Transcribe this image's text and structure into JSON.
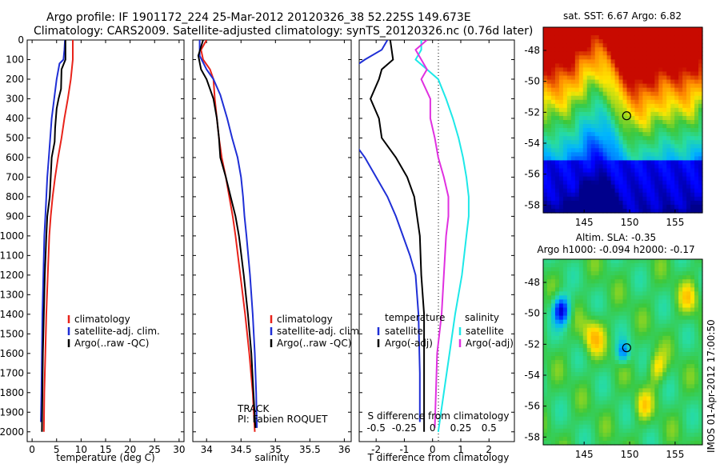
{
  "header": {
    "line1": "Argo profile: IF 1901172_224 25-Mar-2012 20120326_38 52.225S 149.673E",
    "line2": "Climatology: CARS2009. Satellite-adjusted climatology: synTS_20120326.nc (0.76d later)"
  },
  "side_label": "IMOS 01-Apr-2012 17:00:50",
  "colors": {
    "climatology": "#e8231a",
    "satellite": "#1f2fd6",
    "argo": "#000000",
    "cyan": "#1de8e8",
    "magenta": "#e030e0"
  },
  "chart_data": [
    {
      "id": "temperature",
      "type": "line",
      "xlabel": "temperature (deg C)",
      "xlim": [
        -1,
        31
      ],
      "xticks": [
        0,
        5,
        10,
        15,
        20,
        25,
        30
      ],
      "ylim": [
        2050,
        0
      ],
      "yticks": [
        0,
        100,
        200,
        300,
        400,
        500,
        600,
        700,
        800,
        900,
        1000,
        1100,
        1200,
        1300,
        1400,
        1500,
        1600,
        1700,
        1800,
        1900,
        2000
      ],
      "legend": [
        "climatology",
        "satellite-adj. clim.",
        "Argo(..raw -QC)"
      ],
      "series": [
        {
          "name": "climatology",
          "color": "climatology",
          "points": [
            [
              8.3,
              0
            ],
            [
              8.3,
              100
            ],
            [
              7.9,
              200
            ],
            [
              7.3,
              300
            ],
            [
              6.6,
              400
            ],
            [
              6.0,
              500
            ],
            [
              5.3,
              600
            ],
            [
              4.7,
              700
            ],
            [
              4.2,
              800
            ],
            [
              3.8,
              900
            ],
            [
              3.5,
              1000
            ],
            [
              3.2,
              1200
            ],
            [
              2.9,
              1400
            ],
            [
              2.7,
              1600
            ],
            [
              2.5,
              1800
            ],
            [
              2.4,
              2000
            ]
          ]
        },
        {
          "name": "satellite-adj. clim.",
          "color": "satellite",
          "points": [
            [
              6.7,
              0
            ],
            [
              6.6,
              50
            ],
            [
              6.4,
              100
            ],
            [
              5.6,
              120
            ],
            [
              5.0,
              200
            ],
            [
              4.5,
              300
            ],
            [
              4.0,
              400
            ],
            [
              3.7,
              500
            ],
            [
              3.4,
              600
            ],
            [
              3.1,
              700
            ],
            [
              2.9,
              800
            ],
            [
              2.7,
              900
            ],
            [
              2.5,
              1000
            ],
            [
              2.3,
              1200
            ],
            [
              2.1,
              1400
            ],
            [
              2.0,
              1600
            ],
            [
              1.9,
              1800
            ],
            [
              1.8,
              1950
            ]
          ]
        },
        {
          "name": "Argo(..raw -QC)",
          "color": "argo",
          "points": [
            [
              6.8,
              0
            ],
            [
              6.8,
              100
            ],
            [
              6.0,
              150
            ],
            [
              5.9,
              250
            ],
            [
              5.4,
              300
            ],
            [
              5.0,
              350
            ],
            [
              4.7,
              450
            ],
            [
              4.6,
              520
            ],
            [
              4.0,
              600
            ],
            [
              3.8,
              700
            ],
            [
              3.6,
              800
            ],
            [
              3.1,
              900
            ],
            [
              2.9,
              1000
            ],
            [
              2.6,
              1200
            ],
            [
              2.4,
              1400
            ],
            [
              2.2,
              1600
            ],
            [
              2.1,
              1800
            ],
            [
              2.0,
              2000
            ]
          ]
        }
      ]
    },
    {
      "id": "salinity",
      "type": "line",
      "xlabel": "salinity",
      "xlim": [
        33.8,
        36.1
      ],
      "xticks": [
        34,
        34.5,
        35,
        35.5,
        36
      ],
      "ylim": [
        2050,
        0
      ],
      "legend": [
        "climatology",
        "satellite-adj. clim.",
        "Argo(..raw -QC)"
      ],
      "annotation": [
        "TRACK",
        "PI: Fabien ROQUET"
      ],
      "series": [
        {
          "name": "climatology",
          "color": "climatology",
          "points": [
            [
              34.0,
              0
            ],
            [
              33.92,
              50
            ],
            [
              33.95,
              100
            ],
            [
              34.05,
              150
            ],
            [
              34.1,
              200
            ],
            [
              34.12,
              300
            ],
            [
              34.15,
              400
            ],
            [
              34.18,
              500
            ],
            [
              34.22,
              600
            ],
            [
              34.28,
              700
            ],
            [
              34.33,
              800
            ],
            [
              34.38,
              900
            ],
            [
              34.42,
              1000
            ],
            [
              34.49,
              1200
            ],
            [
              34.56,
              1400
            ],
            [
              34.62,
              1600
            ],
            [
              34.67,
              1800
            ],
            [
              34.7,
              2000
            ]
          ]
        },
        {
          "name": "satellite-adj. clim.",
          "color": "satellite",
          "points": [
            [
              33.9,
              0
            ],
            [
              33.9,
              80
            ],
            [
              34.0,
              150
            ],
            [
              34.1,
              200
            ],
            [
              34.2,
              280
            ],
            [
              34.3,
              400
            ],
            [
              34.37,
              500
            ],
            [
              34.45,
              600
            ],
            [
              34.5,
              700
            ],
            [
              34.53,
              800
            ],
            [
              34.55,
              900
            ],
            [
              34.58,
              1000
            ],
            [
              34.63,
              1200
            ],
            [
              34.67,
              1400
            ],
            [
              34.7,
              1600
            ],
            [
              34.72,
              1800
            ],
            [
              34.73,
              1980
            ]
          ]
        },
        {
          "name": "Argo(..raw -QC)",
          "color": "argo",
          "points": [
            [
              33.95,
              0
            ],
            [
              33.88,
              80
            ],
            [
              33.92,
              150
            ],
            [
              34.0,
              200
            ],
            [
              34.05,
              250
            ],
            [
              34.1,
              300
            ],
            [
              34.15,
              400
            ],
            [
              34.18,
              500
            ],
            [
              34.2,
              600
            ],
            [
              34.28,
              700
            ],
            [
              34.35,
              800
            ],
            [
              34.42,
              900
            ],
            [
              34.47,
              1000
            ],
            [
              34.54,
              1200
            ],
            [
              34.6,
              1400
            ],
            [
              34.65,
              1600
            ],
            [
              34.68,
              1800
            ],
            [
              34.71,
              1980
            ]
          ]
        }
      ]
    },
    {
      "id": "difference",
      "type": "line",
      "xlabel": "T difference from climatology",
      "xlim": [
        -2.6,
        2.9
      ],
      "xticks": [
        -2,
        -1,
        0,
        1,
        2
      ],
      "xlabel_top": "S difference from climatology",
      "xticks_top": [
        -0.5,
        -0.25,
        0,
        0.25,
        0.5
      ],
      "ylim": [
        2050,
        0
      ],
      "legend_left_title": "temperature",
      "legend_right_title": "salinity",
      "legend_left": [
        "satellite",
        "Argo(-adj)"
      ],
      "legend_right": [
        "satellite",
        "Argo(-adj)"
      ],
      "series": [
        {
          "name": "T satellite",
          "color": "satellite",
          "points": [
            [
              -1.6,
              0
            ],
            [
              -1.8,
              50
            ],
            [
              -2.4,
              100
            ],
            [
              -2.9,
              150
            ],
            [
              -3.2,
              300
            ],
            [
              -2.9,
              500
            ],
            [
              -2.4,
              600
            ],
            [
              -2.0,
              700
            ],
            [
              -1.6,
              800
            ],
            [
              -1.3,
              900
            ],
            [
              -1.05,
              1000
            ],
            [
              -0.8,
              1100
            ],
            [
              -0.6,
              1200
            ],
            [
              -0.5,
              1400
            ],
            [
              -0.45,
              1700
            ],
            [
              -0.45,
              1950
            ]
          ]
        },
        {
          "name": "T Argo(-adj)",
          "color": "argo",
          "points": [
            [
              -1.5,
              0
            ],
            [
              -1.4,
              100
            ],
            [
              -1.8,
              150
            ],
            [
              -1.9,
              200
            ],
            [
              -2.2,
              300
            ],
            [
              -1.9,
              400
            ],
            [
              -1.8,
              500
            ],
            [
              -1.3,
              600
            ],
            [
              -0.9,
              700
            ],
            [
              -0.65,
              800
            ],
            [
              -0.55,
              900
            ],
            [
              -0.45,
              1000
            ],
            [
              -0.4,
              1200
            ],
            [
              -0.3,
              1400
            ],
            [
              -0.3,
              1700
            ],
            [
              -0.3,
              2000
            ]
          ]
        },
        {
          "name": "S satellite",
          "color": "cyan",
          "points": [
            [
              -0.1,
              0
            ],
            [
              -0.1,
              50
            ],
            [
              -0.15,
              100
            ],
            [
              -0.05,
              150
            ],
            [
              0.05,
              200
            ],
            [
              0.12,
              300
            ],
            [
              0.18,
              400
            ],
            [
              0.23,
              500
            ],
            [
              0.27,
              600
            ],
            [
              0.3,
              700
            ],
            [
              0.32,
              800
            ],
            [
              0.32,
              900
            ],
            [
              0.3,
              1000
            ],
            [
              0.26,
              1200
            ],
            [
              0.2,
              1400
            ],
            [
              0.15,
              1600
            ],
            [
              0.1,
              1800
            ],
            [
              0.05,
              2000
            ]
          ]
        },
        {
          "name": "S Argo(-adj)",
          "color": "magenta",
          "points": [
            [
              -0.05,
              0
            ],
            [
              -0.15,
              50
            ],
            [
              -0.1,
              100
            ],
            [
              -0.05,
              150
            ],
            [
              -0.1,
              200
            ],
            [
              -0.02,
              300
            ],
            [
              -0.02,
              400
            ],
            [
              0.02,
              500
            ],
            [
              0.05,
              600
            ],
            [
              0.1,
              700
            ],
            [
              0.14,
              800
            ],
            [
              0.14,
              900
            ],
            [
              0.12,
              1000
            ],
            [
              0.1,
              1200
            ],
            [
              0.08,
              1400
            ],
            [
              0.04,
              1600
            ],
            [
              0.03,
              1800
            ],
            [
              0.02,
              1980
            ]
          ]
        }
      ]
    },
    {
      "id": "sst_map",
      "type": "heatmap",
      "title": "sat. SST: 6.67 Argo: 6.82",
      "xticks": [
        145,
        150,
        155
      ],
      "yticks": [
        -48,
        -50,
        -52,
        -54,
        -56,
        -58
      ],
      "xlim": [
        140.5,
        158
      ],
      "ylim": [
        -58.5,
        -46.5
      ],
      "marker": [
        149.673,
        -52.225
      ]
    },
    {
      "id": "sla_map",
      "type": "heatmap",
      "title": "Altim. SLA: -0.35",
      "subtitle": "Argo h1000: -0.094 h2000: -0.17",
      "xticks": [
        145,
        150,
        155
      ],
      "yticks": [
        -48,
        -50,
        -52,
        -54,
        -56,
        -58
      ],
      "xlim": [
        140.5,
        158
      ],
      "ylim": [
        -58.5,
        -46.5
      ],
      "marker": [
        149.673,
        -52.225
      ]
    }
  ]
}
